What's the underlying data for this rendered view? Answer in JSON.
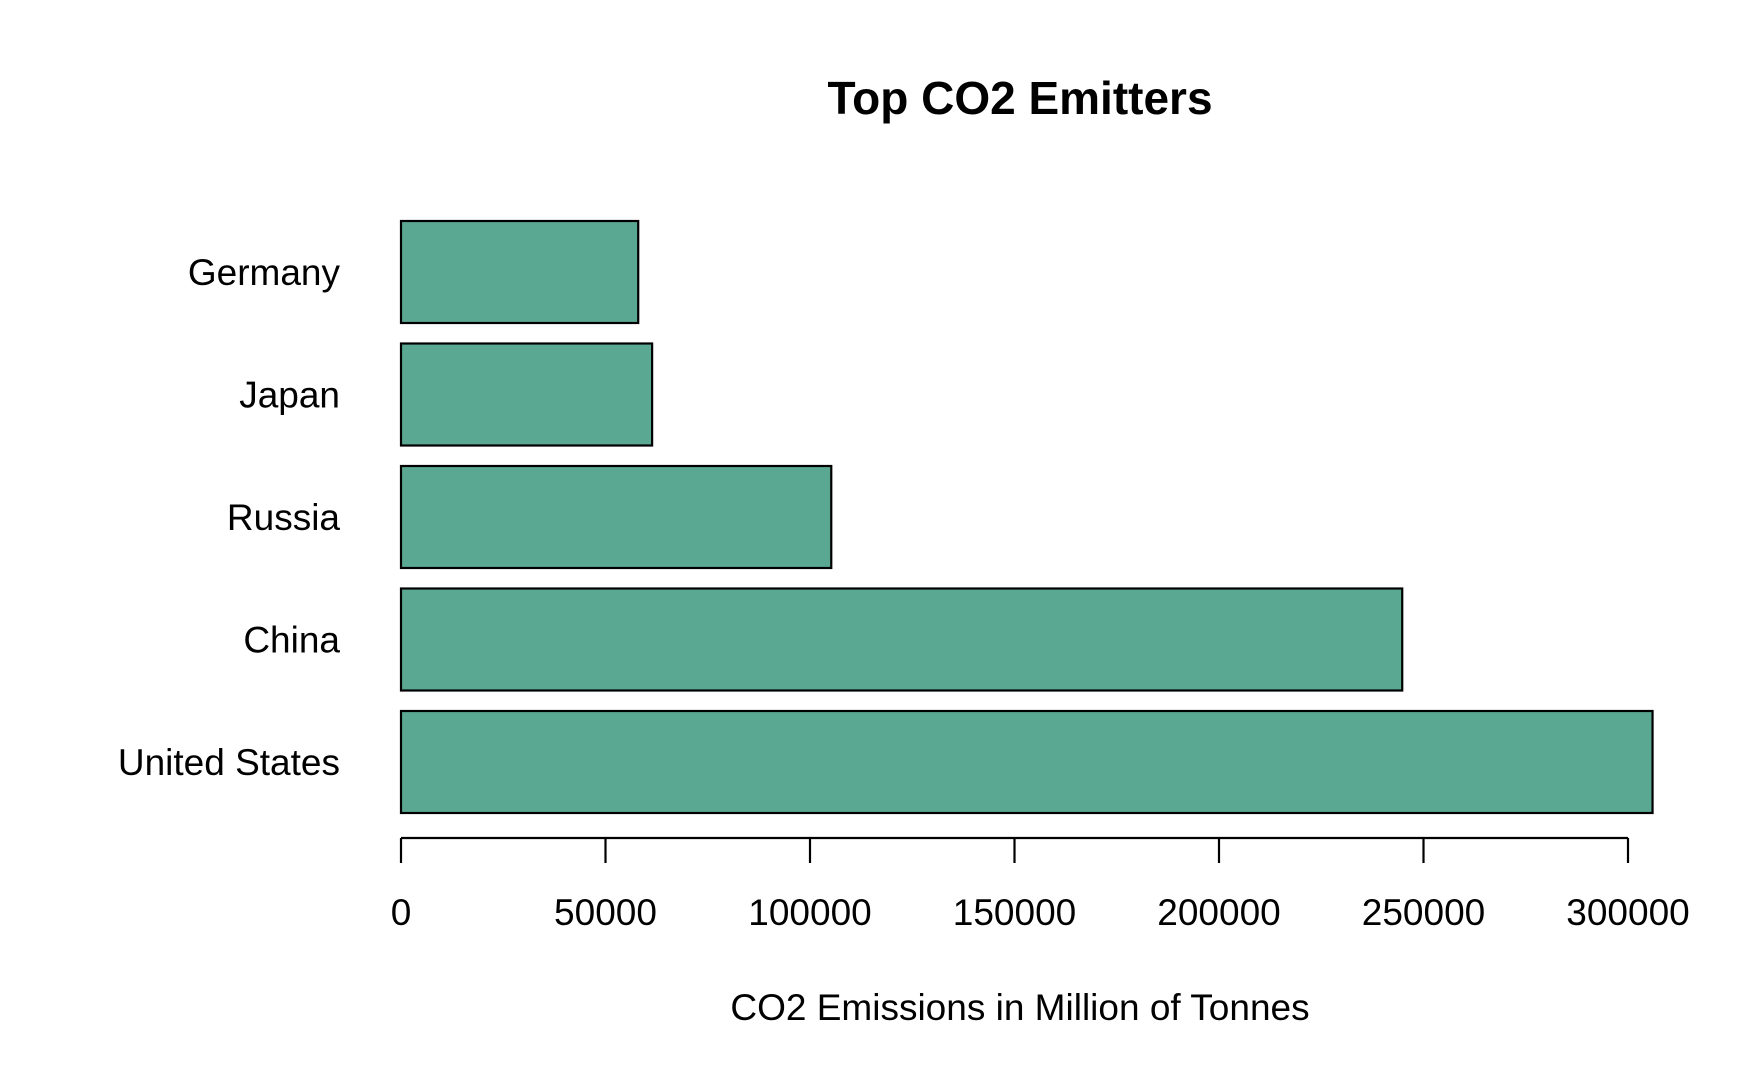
{
  "chart_data": {
    "type": "bar",
    "orientation": "horizontal",
    "title": "Top CO2 Emitters",
    "xlabel": "CO2 Emissions in Million of Tonnes",
    "ylabel": "",
    "categories": [
      "United States",
      "China",
      "Russia",
      "Japan",
      "Germany"
    ],
    "values": [
      306000,
      244800,
      105200,
      61400,
      58000
    ],
    "xlim": [
      0,
      300000
    ],
    "xticks": [
      0,
      50000,
      100000,
      150000,
      200000,
      250000,
      300000
    ],
    "xtick_labels": [
      "0",
      "50000",
      "100000",
      "150000",
      "200000",
      "250000",
      "300000"
    ],
    "bar_color": "#5ba892",
    "bar_edge_color": "#000000",
    "grid": false,
    "legend": "none"
  }
}
